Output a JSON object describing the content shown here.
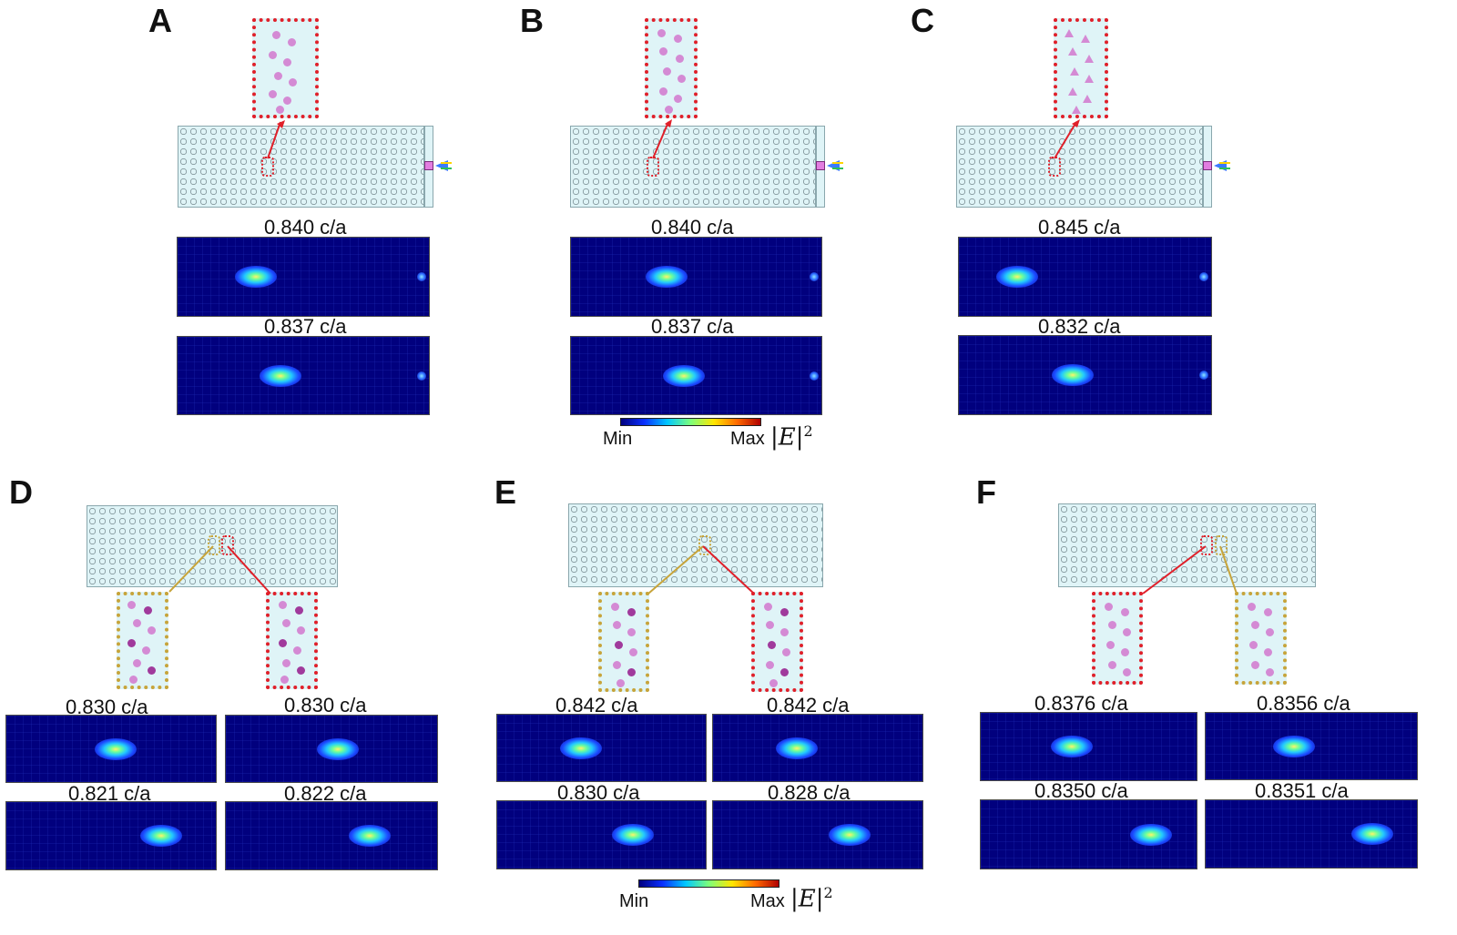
{
  "figure": {
    "panels": {
      "A": {
        "letter": "A",
        "top_freq": "0.840 c/a",
        "bottom_freq": "0.837 c/a"
      },
      "B": {
        "letter": "B",
        "top_freq": "0.840 c/a",
        "bottom_freq": "0.837 c/a"
      },
      "C": {
        "letter": "C",
        "top_freq": "0.845 c/a",
        "bottom_freq": "0.832 c/a"
      },
      "D": {
        "letter": "D",
        "left_top": "0.830 c/a",
        "right_top": "0.830 c/a",
        "left_bottom": "0.821 c/a",
        "right_bottom": "0.822 c/a"
      },
      "E": {
        "letter": "E",
        "left_top": "0.842 c/a",
        "right_top": "0.842 c/a",
        "left_bottom": "0.830 c/a",
        "right_bottom": "0.828 c/a"
      },
      "F": {
        "letter": "F",
        "left_top": "0.8376 c/a",
        "right_top": "0.8356 c/a",
        "left_bottom": "0.8350 c/a",
        "right_bottom": "0.8351 c/a"
      }
    },
    "colorbar": {
      "min": "Min",
      "max": "Max",
      "quantity": "|E|",
      "exponent": "2"
    },
    "colors": {
      "field_bg": "#01007e",
      "crystal_fill": "#dff4f7",
      "red_outline": "#e0202a",
      "gold_outline": "#c7a43a",
      "dot_pink": "#d48ad4",
      "dot_purple": "#a03a9c"
    }
  }
}
